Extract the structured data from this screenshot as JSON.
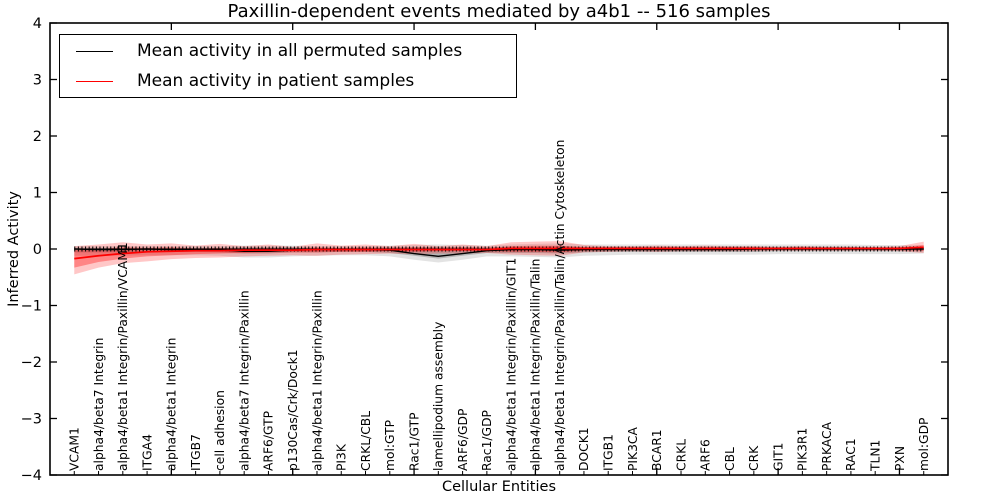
{
  "legend": [
    {
      "label": "Mean activity in all permuted samples",
      "color": "#000000"
    },
    {
      "label": "Mean activity in patient samples",
      "color": "#ff0000"
    }
  ],
  "chart_data": {
    "type": "line",
    "title": "Paxillin-dependent events mediated by a4b1 -- 516 samples",
    "xlabel": "Cellular Entities",
    "ylabel": "Inferred Activity",
    "ylim": [
      -4,
      4
    ],
    "xlim": [
      0,
      37
    ],
    "yticks": [
      -4,
      -3,
      -2,
      -1,
      0,
      1,
      2,
      3,
      4
    ],
    "yticklabels": [
      "−4",
      "−3",
      "−2",
      "−1",
      "0",
      "1",
      "2",
      "3",
      "4"
    ],
    "xticks": [
      5,
      10,
      15,
      20,
      25,
      30,
      35
    ],
    "grid": false,
    "legend_position": "upper left",
    "zero_reference_line": {
      "style": "ticked",
      "color": "#000000"
    },
    "categories": [
      "VCAM1",
      "alpha4/beta7 Integrin",
      "alpha4/beta1 Integrin/Paxillin/VCAM1",
      "ITGA4",
      "alpha4/beta1 Integrin",
      "ITGB7",
      "cell adhesion",
      "alpha4/beta7 Integrin/Paxillin",
      "ARF6/GTP",
      "p130Cas/Crk/Dock1",
      "alpha4/beta1 Integrin/Paxillin",
      "PI3K",
      "CRKL/CBL",
      "mol:GTP",
      "Rac1/GTP",
      "lamellipodium assembly",
      "ARF6/GDP",
      "Rac1/GDP",
      "alpha4/beta1 Integrin/Paxillin/GIT1",
      "alpha4/beta1 Integrin/Paxillin/Talin",
      "alpha4/beta1 Integrin/Paxillin/Talin/Actin Cytoskeleton",
      "DOCK1",
      "ITGB1",
      "PIK3CA",
      "BCAR1",
      "CRKL",
      "ARF6",
      "CBL",
      "CRK",
      "GIT1",
      "PIK3R1",
      "PRKACA",
      "RAC1",
      "TLN1",
      "PXN",
      "mol:GDP"
    ],
    "series": [
      {
        "name": "Mean activity in all permuted samples",
        "color": "#000000",
        "values": [
          0,
          -0.01,
          -0.01,
          0,
          -0.01,
          -0.01,
          -0.02,
          -0.04,
          -0.04,
          -0.02,
          -0.01,
          -0.01,
          -0.01,
          -0.02,
          -0.08,
          -0.13,
          -0.08,
          -0.03,
          -0.01,
          -0.01,
          -0.02,
          -0.01,
          -0.01,
          -0.01,
          -0.01,
          -0.01,
          -0.01,
          -0.01,
          0,
          0,
          0,
          0,
          0,
          0,
          0,
          0
        ]
      },
      {
        "name": "Mean activity in patient samples",
        "color": "#ff0000",
        "values": [
          -0.17,
          -0.12,
          -0.08,
          -0.05,
          -0.04,
          -0.03,
          -0.03,
          -0.02,
          -0.02,
          -0.02,
          -0.01,
          -0.01,
          -0.01,
          -0.01,
          -0.01,
          -0.01,
          -0.01,
          -0.01,
          0.01,
          0.01,
          0.01,
          0.01,
          0.01,
          0.01,
          0.01,
          0.01,
          0.01,
          0.01,
          0.01,
          0.01,
          0.01,
          0.01,
          0.01,
          0.01,
          0.01,
          0.03
        ]
      }
    ],
    "bands": [
      {
        "name": "permuted-band-outer",
        "color": "#000000",
        "opacity": 0.11,
        "upper": [
          0.05,
          0.05,
          0.05,
          0.05,
          0.05,
          0.05,
          0.05,
          0.06,
          0.06,
          0.06,
          0.05,
          0.05,
          0.05,
          0.06,
          0.07,
          0.08,
          0.07,
          0.06,
          0.08,
          0.09,
          0.1,
          0.08,
          0.08,
          0.08,
          0.08,
          0.08,
          0.08,
          0.08,
          0.08,
          0.08,
          0.08,
          0.08,
          0.08,
          0.07,
          0.07,
          0.06
        ],
        "lower": [
          -0.12,
          -0.12,
          -0.12,
          -0.11,
          -0.11,
          -0.11,
          -0.12,
          -0.15,
          -0.15,
          -0.13,
          -0.12,
          -0.11,
          -0.11,
          -0.13,
          -0.19,
          -0.24,
          -0.19,
          -0.13,
          -0.13,
          -0.14,
          -0.15,
          -0.12,
          -0.11,
          -0.1,
          -0.1,
          -0.1,
          -0.1,
          -0.1,
          -0.1,
          -0.09,
          -0.09,
          -0.09,
          -0.09,
          -0.09,
          -0.09,
          -0.08
        ]
      },
      {
        "name": "permuted-band-inner",
        "color": "#000000",
        "opacity": 0.2,
        "upper": [
          0.02,
          0.02,
          0.02,
          0.02,
          0.02,
          0.02,
          0.02,
          0.03,
          0.03,
          0.03,
          0.02,
          0.02,
          0.02,
          0.03,
          0.03,
          0.04,
          0.03,
          0.03,
          0.04,
          0.04,
          0.05,
          0.04,
          0.04,
          0.04,
          0.04,
          0.04,
          0.04,
          0.04,
          0.04,
          0.04,
          0.04,
          0.04,
          0.04,
          0.03,
          0.03,
          0.03
        ],
        "lower": [
          -0.06,
          -0.06,
          -0.06,
          -0.05,
          -0.05,
          -0.05,
          -0.06,
          -0.08,
          -0.08,
          -0.06,
          -0.06,
          -0.05,
          -0.05,
          -0.07,
          -0.12,
          -0.17,
          -0.12,
          -0.07,
          -0.07,
          -0.07,
          -0.08,
          -0.06,
          -0.05,
          -0.05,
          -0.05,
          -0.05,
          -0.05,
          -0.05,
          -0.05,
          -0.04,
          -0.04,
          -0.04,
          -0.04,
          -0.04,
          -0.04,
          -0.04
        ]
      },
      {
        "name": "patient-band-outer",
        "color": "#ff0000",
        "opacity": 0.22,
        "upper": [
          0.05,
          0.08,
          0.12,
          0.08,
          0.1,
          0.06,
          0.09,
          0.05,
          0.08,
          0.04,
          0.1,
          0.06,
          0.08,
          0.05,
          0.09,
          0.05,
          0.08,
          0.05,
          0.12,
          0.13,
          0.14,
          0.07,
          0.05,
          0.05,
          0.06,
          0.05,
          0.06,
          0.05,
          0.05,
          0.04,
          0.05,
          0.04,
          0.04,
          0.04,
          0.05,
          0.13
        ],
        "lower": [
          -0.45,
          -0.33,
          -0.25,
          -0.22,
          -0.18,
          -0.16,
          -0.15,
          -0.13,
          -0.12,
          -0.11,
          -0.12,
          -0.1,
          -0.09,
          -0.08,
          -0.09,
          -0.08,
          -0.08,
          -0.07,
          -0.1,
          -0.11,
          -0.12,
          -0.06,
          -0.05,
          -0.04,
          -0.05,
          -0.04,
          -0.04,
          -0.04,
          -0.04,
          -0.03,
          -0.03,
          -0.03,
          -0.03,
          -0.03,
          -0.04,
          -0.07
        ]
      },
      {
        "name": "patient-band-inner",
        "color": "#ff0000",
        "opacity": 0.33,
        "upper": [
          -0.02,
          0.0,
          0.03,
          0.02,
          0.03,
          0.01,
          0.02,
          0.01,
          0.02,
          0.01,
          0.03,
          0.02,
          0.03,
          0.02,
          0.03,
          0.02,
          0.03,
          0.02,
          0.05,
          0.06,
          0.06,
          0.03,
          0.03,
          0.03,
          0.03,
          0.03,
          0.03,
          0.03,
          0.03,
          0.02,
          0.03,
          0.02,
          0.02,
          0.02,
          0.03,
          0.07
        ],
        "lower": [
          -0.33,
          -0.23,
          -0.17,
          -0.13,
          -0.11,
          -0.09,
          -0.08,
          -0.07,
          -0.06,
          -0.06,
          -0.06,
          -0.05,
          -0.05,
          -0.04,
          -0.05,
          -0.04,
          -0.04,
          -0.04,
          -0.05,
          -0.05,
          -0.06,
          -0.03,
          -0.02,
          -0.02,
          -0.02,
          -0.02,
          -0.02,
          -0.02,
          -0.02,
          -0.01,
          -0.01,
          -0.01,
          -0.01,
          -0.01,
          -0.02,
          -0.03
        ]
      }
    ]
  }
}
